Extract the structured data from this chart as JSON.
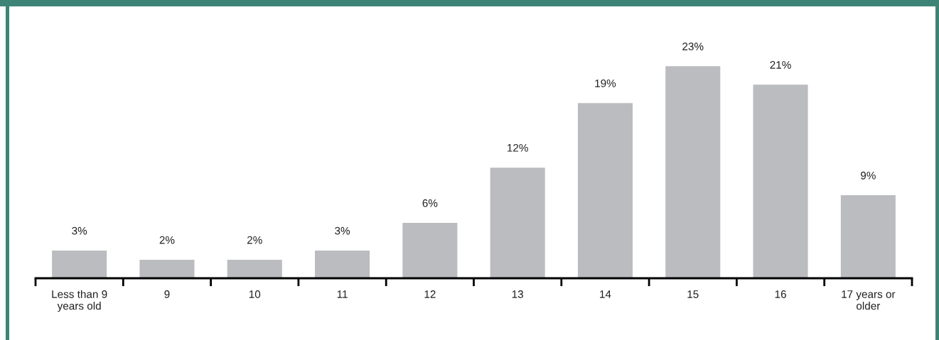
{
  "chart_data": {
    "type": "bar",
    "categories": [
      "Less than 9\nyears old",
      "9",
      "10",
      "11",
      "12",
      "13",
      "14",
      "15",
      "16",
      "17 years or\nolder"
    ],
    "values": [
      3,
      2,
      2,
      3,
      6,
      12,
      19,
      23,
      21,
      9
    ],
    "value_labels": [
      "3%",
      "2%",
      "2%",
      "3%",
      "6%",
      "12%",
      "19%",
      "23%",
      "21%",
      "9%"
    ],
    "color": "#bbbcc0",
    "grid": false,
    "legend": false,
    "tick_labels": "x"
  }
}
